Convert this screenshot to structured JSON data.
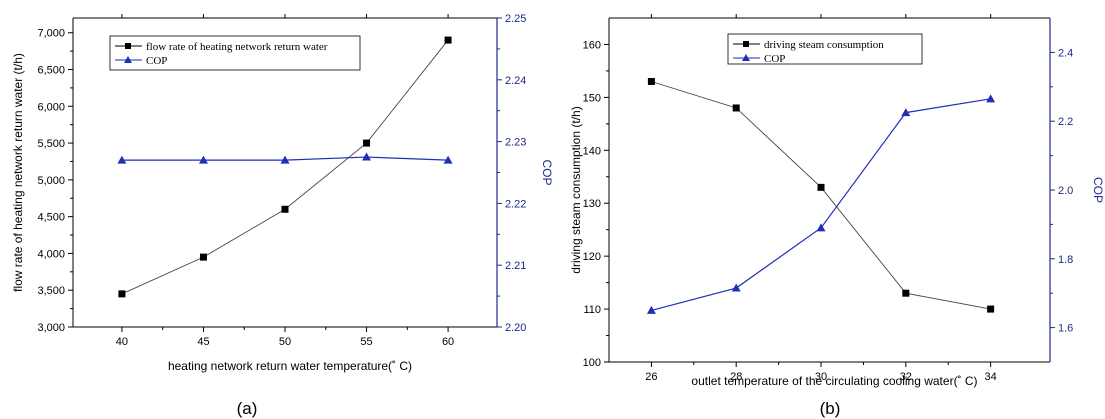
{
  "colors": {
    "series_black": "#000000",
    "series_blue": "#1f2fb8",
    "axis_blue": "#1f2a8a"
  },
  "chart_data": [
    {
      "id": "a",
      "type": "line",
      "caption": "(a)",
      "xlabel": "heating network return water temperature(˚ C)",
      "ylabel": "flow rate of heating network return water (t/h)",
      "y2label": "COP",
      "xlim": [
        37,
        63
      ],
      "ylim": [
        3000,
        7200
      ],
      "y2lim": [
        2.2,
        2.25
      ],
      "xticks": [
        "40",
        "45",
        "50",
        "55",
        "60"
      ],
      "xtick_values": [
        40,
        45,
        50,
        55,
        60
      ],
      "yticks": [
        "3,000",
        "3,500",
        "4,000",
        "4,500",
        "5,000",
        "5,500",
        "6,000",
        "6,500",
        "7,000"
      ],
      "ytick_values": [
        3000,
        3500,
        4000,
        4500,
        5000,
        5500,
        6000,
        6500,
        7000
      ],
      "y2ticks": [
        "2.20",
        "2.21",
        "2.22",
        "2.23",
        "2.24",
        "2.25"
      ],
      "y2tick_values": [
        2.2,
        2.21,
        2.22,
        2.23,
        2.24,
        2.25
      ],
      "legend_position": "top-left",
      "series": [
        {
          "name": "flow rate of heating network return water",
          "axis": "left",
          "marker": "square",
          "x": [
            40,
            45,
            50,
            55,
            60
          ],
          "y": [
            3450,
            3950,
            4600,
            5500,
            6900
          ]
        },
        {
          "name": "COP",
          "axis": "right",
          "marker": "triangle",
          "x": [
            40,
            45,
            50,
            55,
            60
          ],
          "y": [
            2.227,
            2.227,
            2.227,
            2.2275,
            2.227
          ]
        }
      ]
    },
    {
      "id": "b",
      "type": "line",
      "caption": "(b)",
      "xlabel": "outlet temperature of the circulating cooling water(˚ C)",
      "ylabel": "driving steam consumption (t/h)",
      "y2label": "COP",
      "xlim": [
        25,
        35.4
      ],
      "ylim": [
        100,
        165
      ],
      "y2lim": [
        1.5,
        2.5
      ],
      "xticks": [
        "26",
        "28",
        "30",
        "32",
        "34"
      ],
      "xtick_values": [
        26,
        28,
        30,
        32,
        34
      ],
      "yticks": [
        "100",
        "110",
        "120",
        "130",
        "140",
        "150",
        "160"
      ],
      "ytick_values": [
        100,
        110,
        120,
        130,
        140,
        150,
        160
      ],
      "y2ticks": [
        "1.6",
        "1.8",
        "2.0",
        "2.2",
        "2.4"
      ],
      "y2tick_values": [
        1.6,
        1.8,
        2.0,
        2.2,
        2.4
      ],
      "legend_position": "top-center",
      "series": [
        {
          "name": "driving steam consumption",
          "axis": "left",
          "marker": "square",
          "x": [
            26,
            28,
            30,
            32,
            34
          ],
          "y": [
            153,
            148,
            133,
            113,
            110
          ]
        },
        {
          "name": "COP",
          "axis": "right",
          "marker": "triangle",
          "x": [
            26,
            28,
            30,
            32,
            34
          ],
          "y": [
            1.65,
            1.715,
            1.89,
            2.225,
            2.265
          ]
        }
      ]
    }
  ]
}
